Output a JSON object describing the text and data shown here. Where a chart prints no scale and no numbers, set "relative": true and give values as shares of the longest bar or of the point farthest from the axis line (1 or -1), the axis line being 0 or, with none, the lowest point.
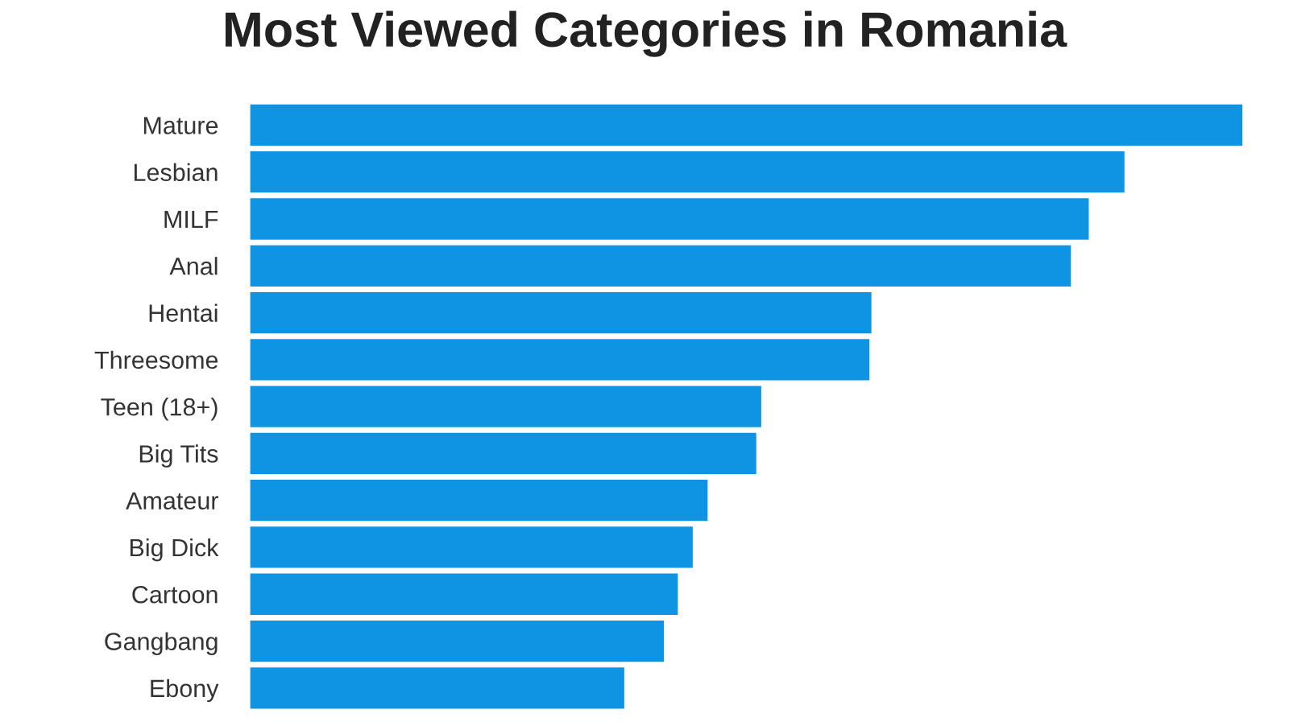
{
  "chart_data": {
    "type": "bar",
    "orientation": "horizontal",
    "relative": true,
    "title": "Most Viewed Categories in Romania",
    "categories": [
      "Mature",
      "Lesbian",
      "MILF",
      "Anal",
      "Hentai",
      "Threesome",
      "Teen (18+)",
      "Big Tits",
      "Amateur",
      "Big Dick",
      "Cartoon",
      "Gangbang",
      "Ebony"
    ],
    "values": [
      1,
      0.881,
      0.845,
      0.827,
      0.626,
      0.624,
      0.515,
      0.51,
      0.461,
      0.446,
      0.431,
      0.417,
      0.377
    ],
    "color": "#0f94e3",
    "grid": false,
    "legend": false
  }
}
